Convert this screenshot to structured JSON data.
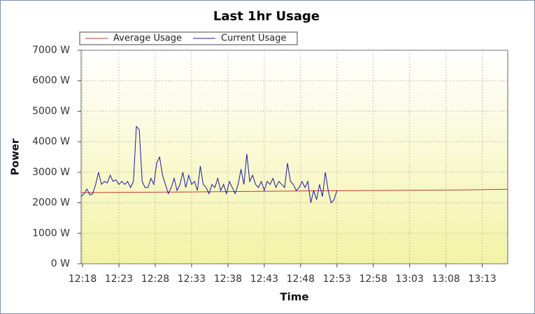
{
  "chart_data": {
    "type": "line",
    "title": "Last 1hr Usage",
    "x_label": "Time",
    "y_label": "Power",
    "xlim": [
      737.8,
      796.5
    ],
    "ylim": [
      0,
      7000
    ],
    "grid": true,
    "xticks": [
      {
        "value": 738,
        "label": "12:18"
      },
      {
        "value": 743,
        "label": "12:23"
      },
      {
        "value": 748,
        "label": "12:28"
      },
      {
        "value": 753,
        "label": "12:33"
      },
      {
        "value": 758,
        "label": "12:38"
      },
      {
        "value": 763,
        "label": "12:43"
      },
      {
        "value": 768,
        "label": "12:48"
      },
      {
        "value": 773,
        "label": "12:53"
      },
      {
        "value": 778,
        "label": "12:58"
      },
      {
        "value": 783,
        "label": "13:03"
      },
      {
        "value": 788,
        "label": "13:08"
      },
      {
        "value": 793,
        "label": "13:13"
      }
    ],
    "yticks": [
      {
        "value": 0,
        "label": "0 W"
      },
      {
        "value": 1000,
        "label": "1000 W"
      },
      {
        "value": 2000,
        "label": "2000 W"
      },
      {
        "value": 3000,
        "label": "3000 W"
      },
      {
        "value": 4000,
        "label": "4000 W"
      },
      {
        "value": 5000,
        "label": "5000 W"
      },
      {
        "value": 6000,
        "label": "6000 W"
      },
      {
        "value": 7000,
        "label": "7000 W"
      }
    ],
    "series": [
      {
        "name": "Average Usage",
        "color": "#c0392b",
        "x": [
          737.8,
          750,
          770,
          790,
          796.5
        ],
        "values": [
          2330,
          2350,
          2390,
          2420,
          2440
        ]
      },
      {
        "name": "Current Usage",
        "color": "#1a1aa6",
        "x": [
          737.8,
          738.2,
          738.6,
          739.0,
          739.4,
          739.8,
          740.2,
          740.6,
          741.0,
          741.4,
          741.8,
          742.2,
          742.6,
          743.0,
          743.4,
          743.8,
          744.2,
          744.6,
          745.0,
          745.4,
          745.8,
          746.2,
          746.6,
          747.0,
          747.4,
          747.8,
          748.2,
          748.6,
          749.0,
          749.4,
          749.8,
          750.2,
          750.6,
          751.0,
          751.4,
          751.8,
          752.2,
          752.6,
          753.0,
          753.4,
          753.8,
          754.2,
          754.6,
          755.0,
          755.4,
          755.8,
          756.2,
          756.6,
          757.0,
          757.4,
          757.8,
          758.2,
          758.6,
          759.0,
          759.4,
          759.8,
          760.2,
          760.6,
          761.0,
          761.4,
          761.8,
          762.2,
          762.6,
          763.0,
          763.4,
          763.8,
          764.2,
          764.6,
          765.0,
          765.4,
          765.8,
          766.2,
          766.6,
          767.0,
          767.4,
          767.8,
          768.2,
          768.6,
          769.0,
          769.4,
          769.8,
          770.2,
          770.6,
          771.0,
          771.4,
          771.8,
          772.2,
          772.6,
          773.0
        ],
        "values": [
          2200,
          2300,
          2450,
          2250,
          2300,
          2600,
          3000,
          2600,
          2700,
          2650,
          2900,
          2700,
          2750,
          2600,
          2700,
          2600,
          2700,
          2500,
          2700,
          4500,
          4400,
          2700,
          2500,
          2500,
          2800,
          2600,
          3300,
          3500,
          2900,
          2600,
          2300,
          2500,
          2800,
          2400,
          2600,
          3000,
          2500,
          2900,
          2600,
          2700,
          2400,
          3200,
          2600,
          2500,
          2300,
          2600,
          2500,
          2800,
          2400,
          2600,
          2300,
          2700,
          2500,
          2300,
          2600,
          3100,
          2600,
          3600,
          2700,
          2900,
          2600,
          2500,
          2700,
          2400,
          2700,
          2600,
          2800,
          2500,
          2700,
          2600,
          2500,
          3300,
          2700,
          2600,
          2400,
          2500,
          2700,
          2500,
          2700,
          2000,
          2400,
          2100,
          2600,
          2200,
          3000,
          2400,
          2000,
          2100,
          2400
        ]
      }
    ]
  }
}
